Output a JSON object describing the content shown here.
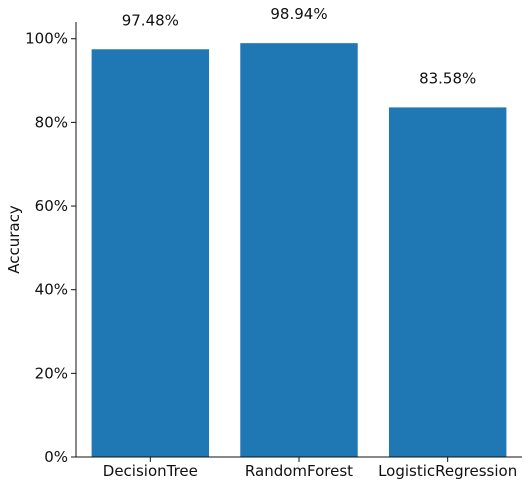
{
  "chart_data": {
    "type": "bar",
    "title": "",
    "xlabel": "",
    "ylabel": "Accuracy",
    "categories": [
      "DecisionTree",
      "RandomForest",
      "LogisticRegression"
    ],
    "values": [
      97.48,
      98.94,
      83.58
    ],
    "value_labels": [
      "97.48%",
      "98.94%",
      "83.58%"
    ],
    "ylim": [
      0,
      104
    ],
    "yticks": [
      0,
      20,
      40,
      60,
      80,
      100
    ],
    "ytick_labels": [
      "0%",
      "20%",
      "40%",
      "60%",
      "80%",
      "100%"
    ],
    "bar_color": "#1f77b4",
    "grid": false,
    "legend": "none"
  }
}
